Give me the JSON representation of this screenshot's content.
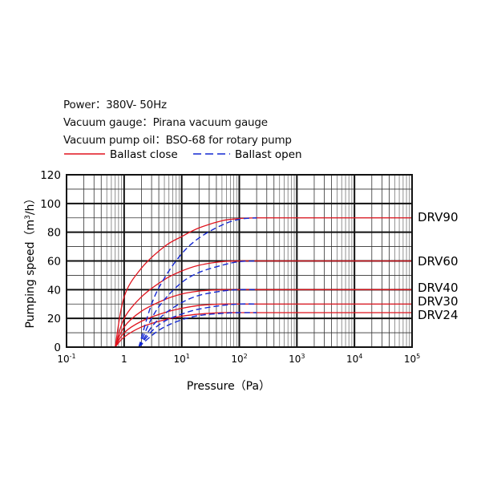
{
  "header": {
    "power": "Power：380V- 50Hz",
    "gauge": "Vacuum gauge：Pirana vacuum gauge",
    "oil": "Vacuum pump oil：BSO-68 for rotary pump"
  },
  "legend": [
    {
      "label": "Ballast close",
      "color": "#e0141e",
      "style": "solid"
    },
    {
      "label": "Ballast open",
      "color": "#1428d2",
      "style": "dashed"
    }
  ],
  "chart_data": {
    "type": "line",
    "title": "",
    "xlabel": "Pressure（Pa）",
    "ylabel": "Pumping speed（m³/h）",
    "xscale": "log",
    "xlim": [
      0.1,
      100000
    ],
    "ylim": [
      0,
      120
    ],
    "x_ticks": [
      "10-1",
      "1",
      "101",
      "102",
      "103",
      "104",
      "105"
    ],
    "y_ticks": [
      0,
      20,
      40,
      60,
      80,
      100,
      120
    ],
    "grid": true,
    "legend_position": "top-left above plot",
    "series": [
      {
        "name": "DRV90 Ballast close",
        "model": "DRV90",
        "ballast": "close",
        "x": [
          0.7,
          1,
          2,
          5,
          10,
          20,
          50,
          100,
          200,
          100000
        ],
        "y": [
          0,
          35,
          55,
          70,
          77,
          83,
          88,
          89.5,
          90,
          90
        ]
      },
      {
        "name": "DRV90 Ballast open",
        "model": "DRV90",
        "ballast": "open",
        "x": [
          1.8,
          3,
          5,
          10,
          20,
          50,
          100,
          200
        ],
        "y": [
          0,
          30,
          48,
          65,
          76,
          85,
          89,
          90
        ]
      },
      {
        "name": "DRV60 Ballast close",
        "model": "DRV60",
        "ballast": "close",
        "x": [
          0.7,
          1,
          2,
          5,
          10,
          20,
          50,
          100,
          200,
          100000
        ],
        "y": [
          0,
          20,
          35,
          47,
          53,
          57,
          59.5,
          60,
          60,
          60
        ]
      },
      {
        "name": "DRV60 Ballast open",
        "model": "DRV60",
        "ballast": "open",
        "x": [
          1.8,
          3,
          5,
          10,
          20,
          50,
          100,
          200
        ],
        "y": [
          0,
          20,
          33,
          45,
          52,
          57,
          59.5,
          60
        ]
      },
      {
        "name": "DRV40 Ballast close",
        "model": "DRV40",
        "ballast": "close",
        "x": [
          0.7,
          1,
          2,
          5,
          10,
          20,
          50,
          100,
          200,
          100000
        ],
        "y": [
          0,
          14,
          25,
          33,
          37,
          39,
          40,
          40,
          40,
          40
        ]
      },
      {
        "name": "DRV40 Ballast open",
        "model": "DRV40",
        "ballast": "open",
        "x": [
          1.8,
          3,
          5,
          10,
          20,
          50,
          100,
          200
        ],
        "y": [
          0,
          14,
          23,
          31,
          36,
          39,
          40,
          40
        ]
      },
      {
        "name": "DRV30 Ballast close",
        "model": "DRV30",
        "ballast": "close",
        "x": [
          0.7,
          1,
          2,
          5,
          10,
          20,
          50,
          100,
          200,
          100000
        ],
        "y": [
          0,
          10,
          18,
          24,
          27,
          29,
          30,
          30,
          30,
          30
        ]
      },
      {
        "name": "DRV30 Ballast open",
        "model": "DRV30",
        "ballast": "open",
        "x": [
          1.8,
          3,
          5,
          10,
          20,
          50,
          100,
          200
        ],
        "y": [
          0,
          11,
          18,
          23,
          26.5,
          29,
          30,
          30
        ]
      },
      {
        "name": "DRV24 Ballast close",
        "model": "DRV24",
        "ballast": "close",
        "x": [
          0.7,
          1,
          2,
          5,
          10,
          20,
          50,
          100,
          200,
          100000
        ],
        "y": [
          0,
          7,
          14,
          19,
          21.5,
          23,
          24,
          24,
          24,
          24
        ]
      },
      {
        "name": "DRV24 Ballast open",
        "model": "DRV24",
        "ballast": "open",
        "x": [
          1.8,
          3,
          5,
          10,
          20,
          50,
          100,
          200
        ],
        "y": [
          0,
          8,
          14,
          19,
          22,
          23.5,
          24,
          24
        ]
      }
    ],
    "annotations": [
      {
        "text": "DRV90",
        "y": 90
      },
      {
        "text": "DRV60",
        "y": 60
      },
      {
        "text": "DRV40",
        "y": 40
      },
      {
        "text": "DRV30",
        "y": 30
      },
      {
        "text": "DRV24",
        "y": 24
      }
    ]
  }
}
